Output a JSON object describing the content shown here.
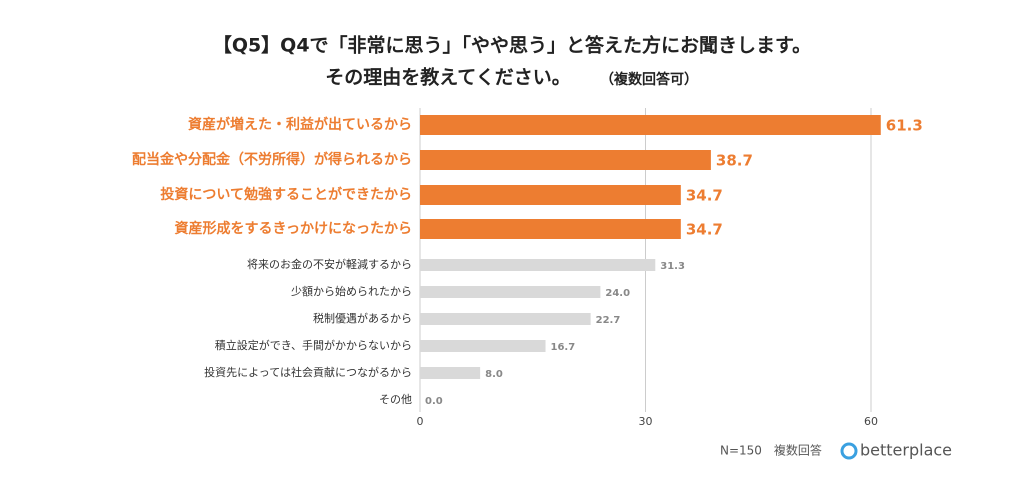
{
  "chart_data": {
    "type": "hbar",
    "title": "【Q5】Q4で「非常に思う」「やや思う」と答えた方にお聞きします。",
    "subtitle": "その理由を教えてください。",
    "subtitle_note": "（複数回答可）",
    "categories": [
      "資産が増えた・利益が出ているから",
      "配当金や分配金（不労所得）が得られるから",
      "投資について勉強することができたから",
      "資産形成をするきっかけになったから",
      "将来のお金の不安が軽減するから",
      "少額から始められたから",
      "税制優遇があるから",
      "積立設定ができ、手間がかからないから",
      "投資先によっては社会貢献につながるから",
      "その他"
    ],
    "values": [
      61.3,
      38.7,
      34.7,
      34.7,
      31.3,
      24.0,
      22.7,
      16.7,
      8.0,
      0.0
    ],
    "value_labels": [
      "61.3",
      "38.7",
      "34.7",
      "34.7",
      "31.3",
      "24.0",
      "22.7",
      "16.7",
      "8.0",
      "0.0"
    ],
    "colors": [
      "#ed7d31",
      "#ed7d31",
      "#ed7d31",
      "#ed7d31",
      "#d9d9d9",
      "#d9d9d9",
      "#d9d9d9",
      "#d9d9d9",
      "#d9d9d9",
      "#d9d9d9"
    ],
    "xlim": [
      0,
      60
    ],
    "xticks": [
      0,
      30,
      60
    ],
    "grid": true,
    "footnote": "N=150　複数回答",
    "brand": "betterplace"
  }
}
